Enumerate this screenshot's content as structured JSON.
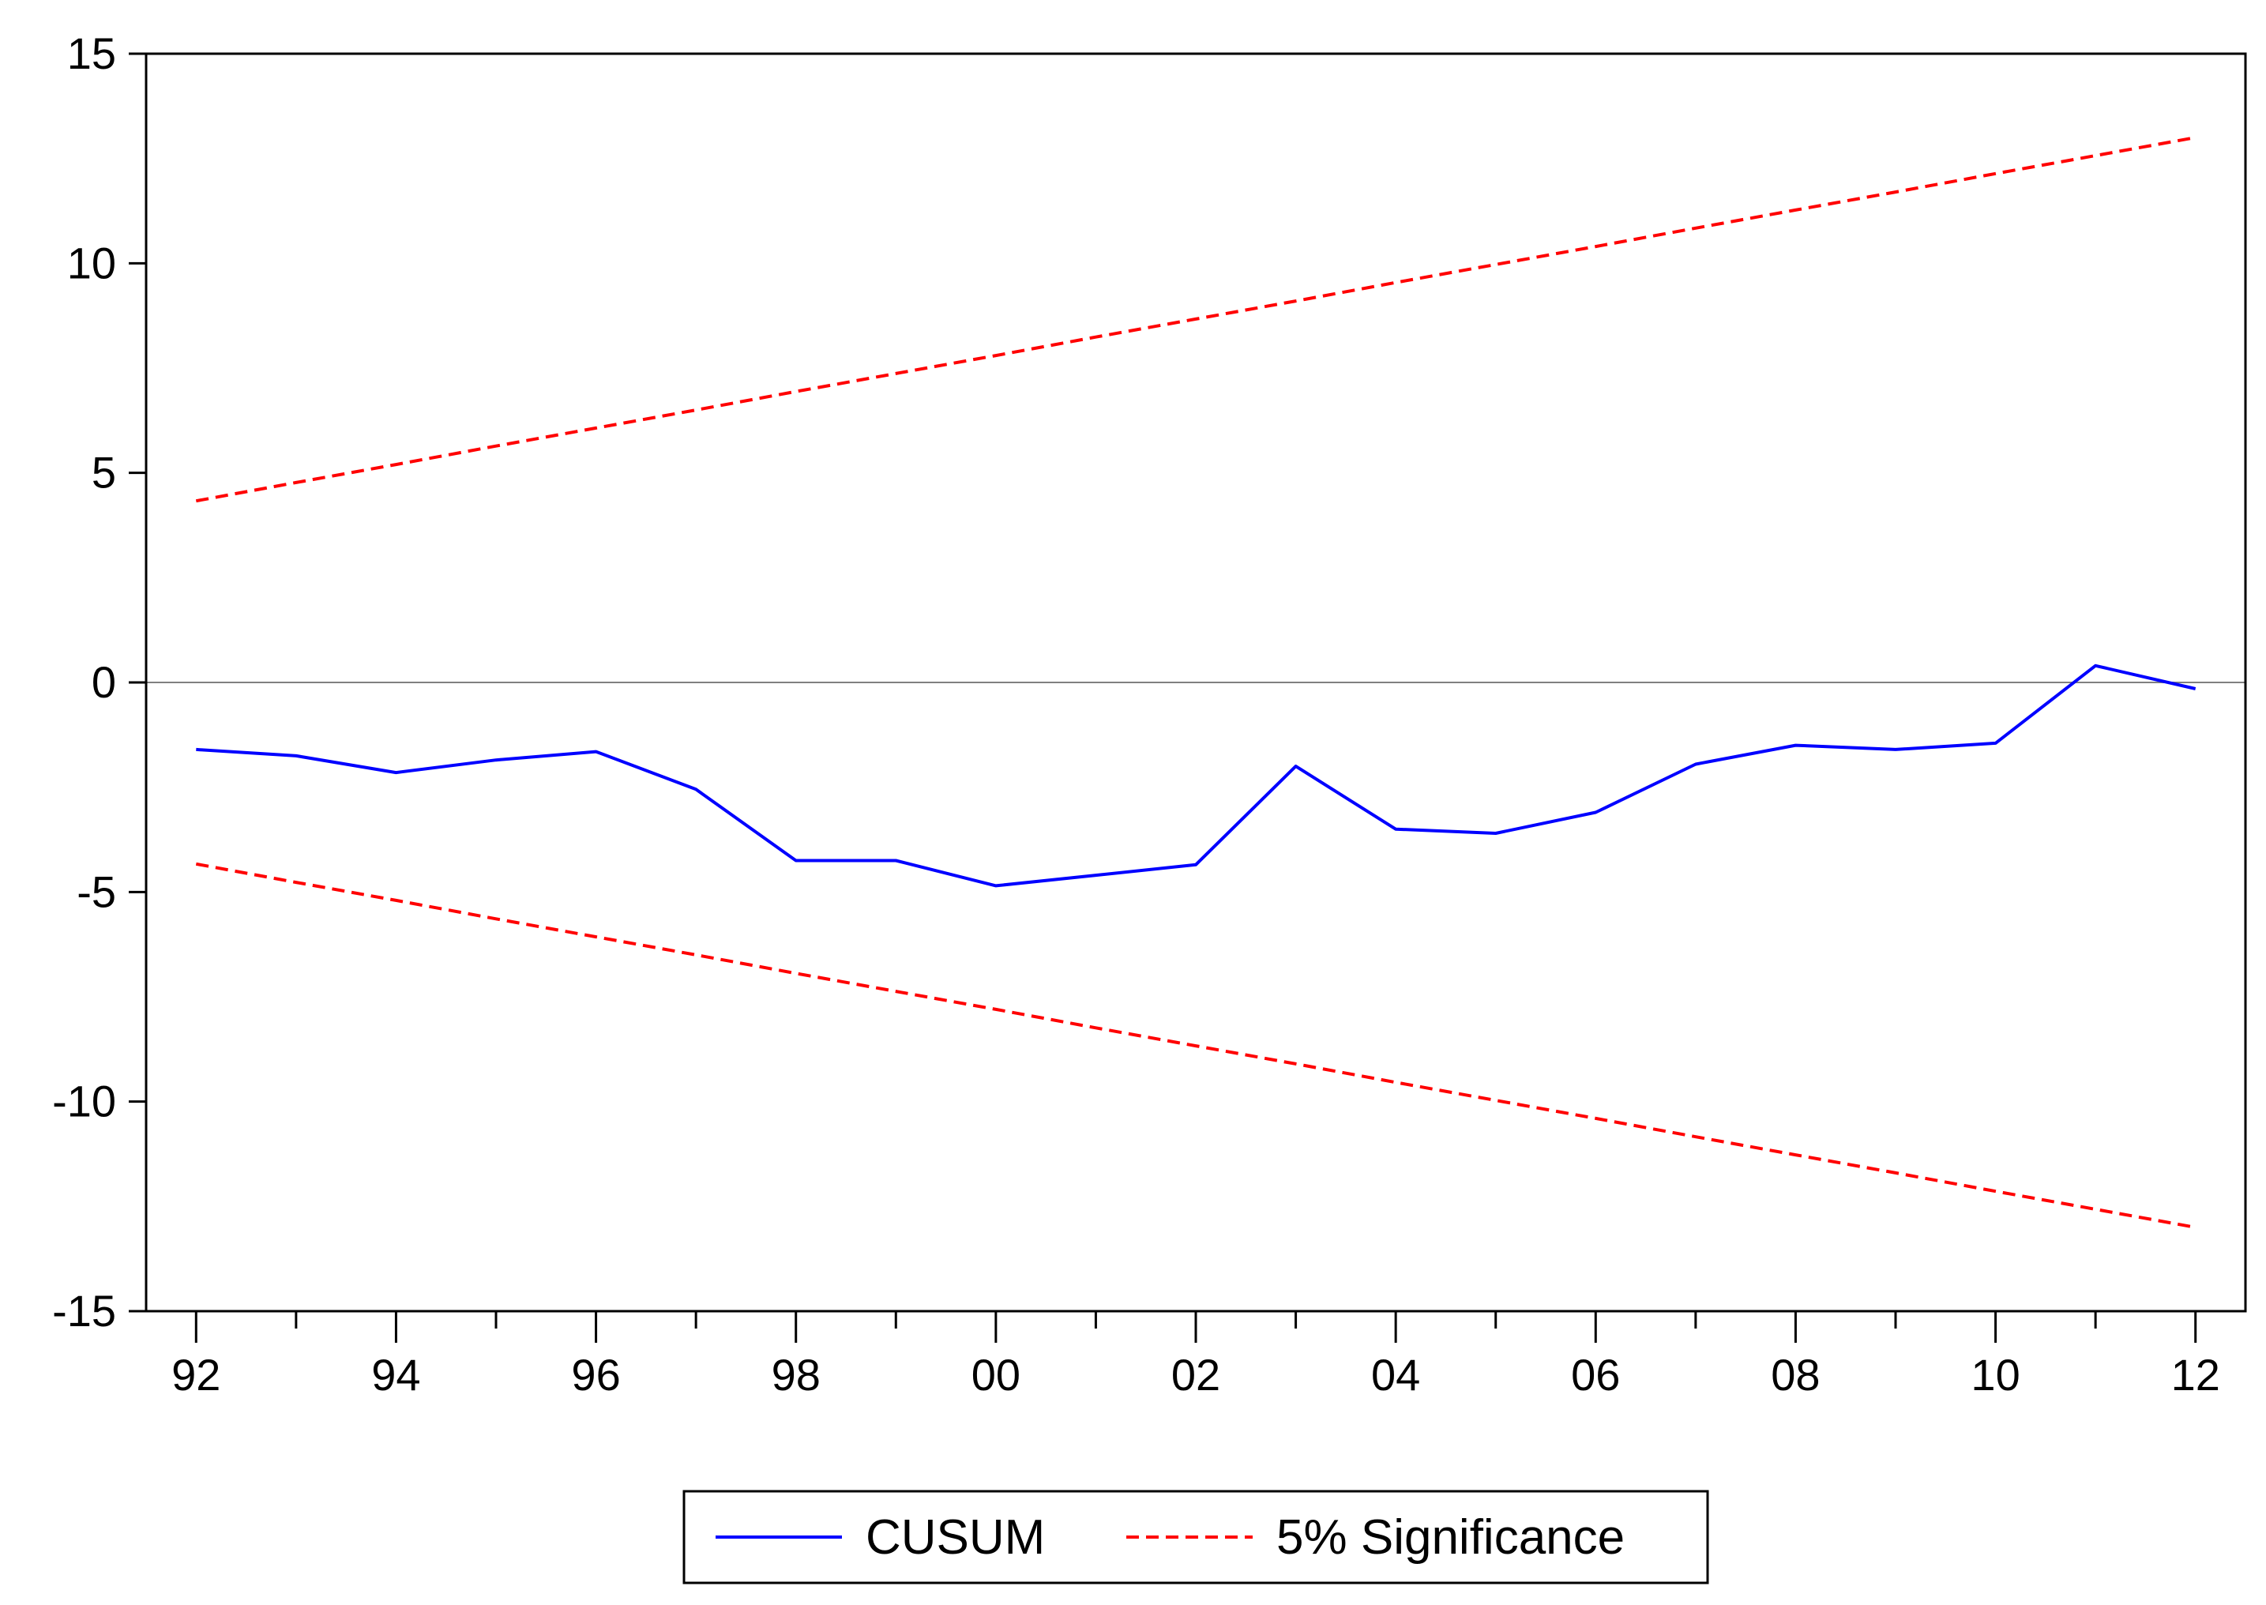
{
  "chart_data": {
    "type": "line",
    "title": "",
    "xlabel": "",
    "ylabel": "",
    "x": [
      1992,
      1993,
      1994,
      1995,
      1996,
      1997,
      1998,
      1999,
      2000,
      2001,
      2002,
      2003,
      2004,
      2005,
      2006,
      2007,
      2008,
      2009,
      2010,
      2011,
      2012
    ],
    "xlim": [
      1991.5,
      2012.5
    ],
    "ylim": [
      -15,
      15
    ],
    "y_ticks": [
      15,
      10,
      5,
      0,
      -5,
      -10,
      -15
    ],
    "y_tick_labels": [
      "15",
      "10",
      "5",
      "0",
      "-5",
      "-10",
      "-15"
    ],
    "x_ticks": [
      1992,
      1994,
      1996,
      1998,
      2000,
      2002,
      2004,
      2006,
      2008,
      2010,
      2012
    ],
    "x_tick_labels": [
      "92",
      "94",
      "96",
      "98",
      "00",
      "02",
      "04",
      "06",
      "08",
      "10",
      "12"
    ],
    "grid": false,
    "zero_line": true,
    "legend_position": "bottom-center",
    "series": [
      {
        "name": "CUSUM",
        "style": "solid",
        "color": "#0000ff",
        "values": [
          -1.6,
          -1.75,
          -2.15,
          -1.85,
          -1.65,
          -2.55,
          -4.25,
          -4.25,
          -4.85,
          -4.6,
          -4.35,
          -2.0,
          -3.5,
          -3.6,
          -3.1,
          -1.95,
          -1.5,
          -1.6,
          -1.45,
          0.4,
          -0.15
        ]
      },
      {
        "name": "5% Significance",
        "style": "dashed",
        "color": "#ff0000",
        "values": [
          4.33,
          4.77,
          5.2,
          5.64,
          6.07,
          6.5,
          6.94,
          7.37,
          7.8,
          8.24,
          8.67,
          9.1,
          9.54,
          9.97,
          10.4,
          10.84,
          11.27,
          11.7,
          12.14,
          12.57,
          13.0
        ]
      },
      {
        "style": "dashed",
        "color": "#ff0000",
        "values": [
          -4.33,
          -4.77,
          -5.2,
          -5.64,
          -6.07,
          -6.5,
          -6.94,
          -7.37,
          -7.8,
          -8.24,
          -8.67,
          -9.1,
          -9.54,
          -9.97,
          -10.4,
          -10.84,
          -11.27,
          -11.7,
          -12.14,
          -12.57,
          -13.0
        ]
      }
    ]
  }
}
